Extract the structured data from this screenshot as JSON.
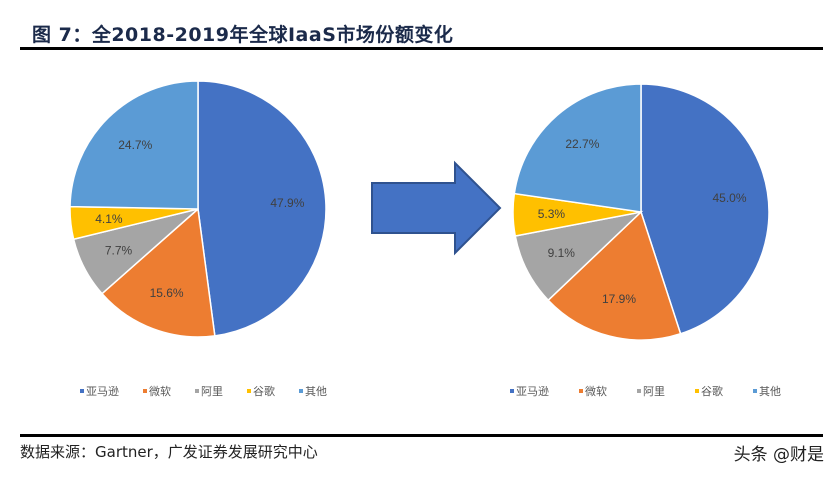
{
  "title": "图 7：全2018-2019年全球IaaS市场份额变化",
  "source": "数据来源：Gartner，广发证券发展研究中心",
  "watermark": "头条 @财是",
  "chart_data": [
    {
      "type": "pie",
      "categories": [
        "亚马逊",
        "微软",
        "阿里",
        "谷歌",
        "其他"
      ],
      "values": [
        47.9,
        15.6,
        7.7,
        4.1,
        24.7
      ],
      "labels": [
        "47.9%",
        "15.6%",
        "7.7%",
        "4.1%",
        "24.7%"
      ],
      "colors": [
        "#4472C4",
        "#ED7D31",
        "#A5A5A5",
        "#FFC000",
        "#5B9BD5"
      ],
      "legend": "bottom"
    },
    {
      "type": "pie",
      "categories": [
        "亚马逊",
        "微软",
        "阿里",
        "谷歌",
        "其他"
      ],
      "values": [
        45.0,
        17.9,
        9.1,
        5.3,
        22.7
      ],
      "labels": [
        "45.0%",
        "17.9%",
        "9.1%",
        "5.3%",
        "22.7%"
      ],
      "colors": [
        "#4472C4",
        "#ED7D31",
        "#A5A5A5",
        "#FFC000",
        "#5B9BD5"
      ],
      "legend": "bottom"
    }
  ],
  "arrow_color": "#4472C4"
}
